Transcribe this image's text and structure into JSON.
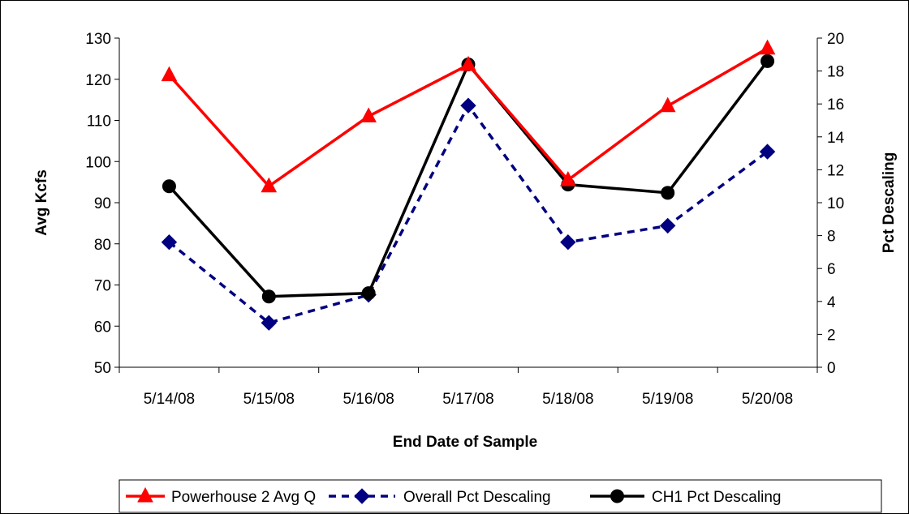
{
  "chart_data": {
    "type": "line",
    "title": "",
    "xlabel": "End Date of Sample",
    "ylabel": "Avg Kcfs",
    "y2label": "Pct Descaling",
    "categories": [
      "5/14/08",
      "5/15/08",
      "5/16/08",
      "5/17/08",
      "5/18/08",
      "5/19/08",
      "5/20/08"
    ],
    "ylim": [
      50,
      130
    ],
    "y2lim": [
      0,
      20
    ],
    "yticks": [
      "50",
      "60",
      "70",
      "80",
      "90",
      "100",
      "110",
      "120",
      "130"
    ],
    "y2ticks": [
      "0",
      "2",
      "4",
      "6",
      "8",
      "10",
      "12",
      "14",
      "16",
      "18",
      "20"
    ],
    "grid": false,
    "legend_position": "bottom",
    "series": [
      {
        "name": "Powerhouse 2 Avg Q",
        "axis": "left",
        "values": [
          121,
          94,
          111,
          123.5,
          95.5,
          113.5,
          127.5
        ],
        "color": "#ff0000",
        "marker": "triangle",
        "dash": "solid"
      },
      {
        "name": "Overall Pct Descaling",
        "axis": "right",
        "values": [
          7.6,
          2.7,
          4.4,
          15.9,
          7.6,
          8.6,
          13.1
        ],
        "color": "#000080",
        "marker": "diamond",
        "dash": "dashed"
      },
      {
        "name": "CH1 Pct Descaling",
        "axis": "right",
        "values": [
          11.0,
          4.3,
          4.5,
          18.4,
          11.1,
          10.6,
          18.6
        ],
        "color": "#000000",
        "marker": "circle",
        "dash": "solid"
      }
    ]
  }
}
